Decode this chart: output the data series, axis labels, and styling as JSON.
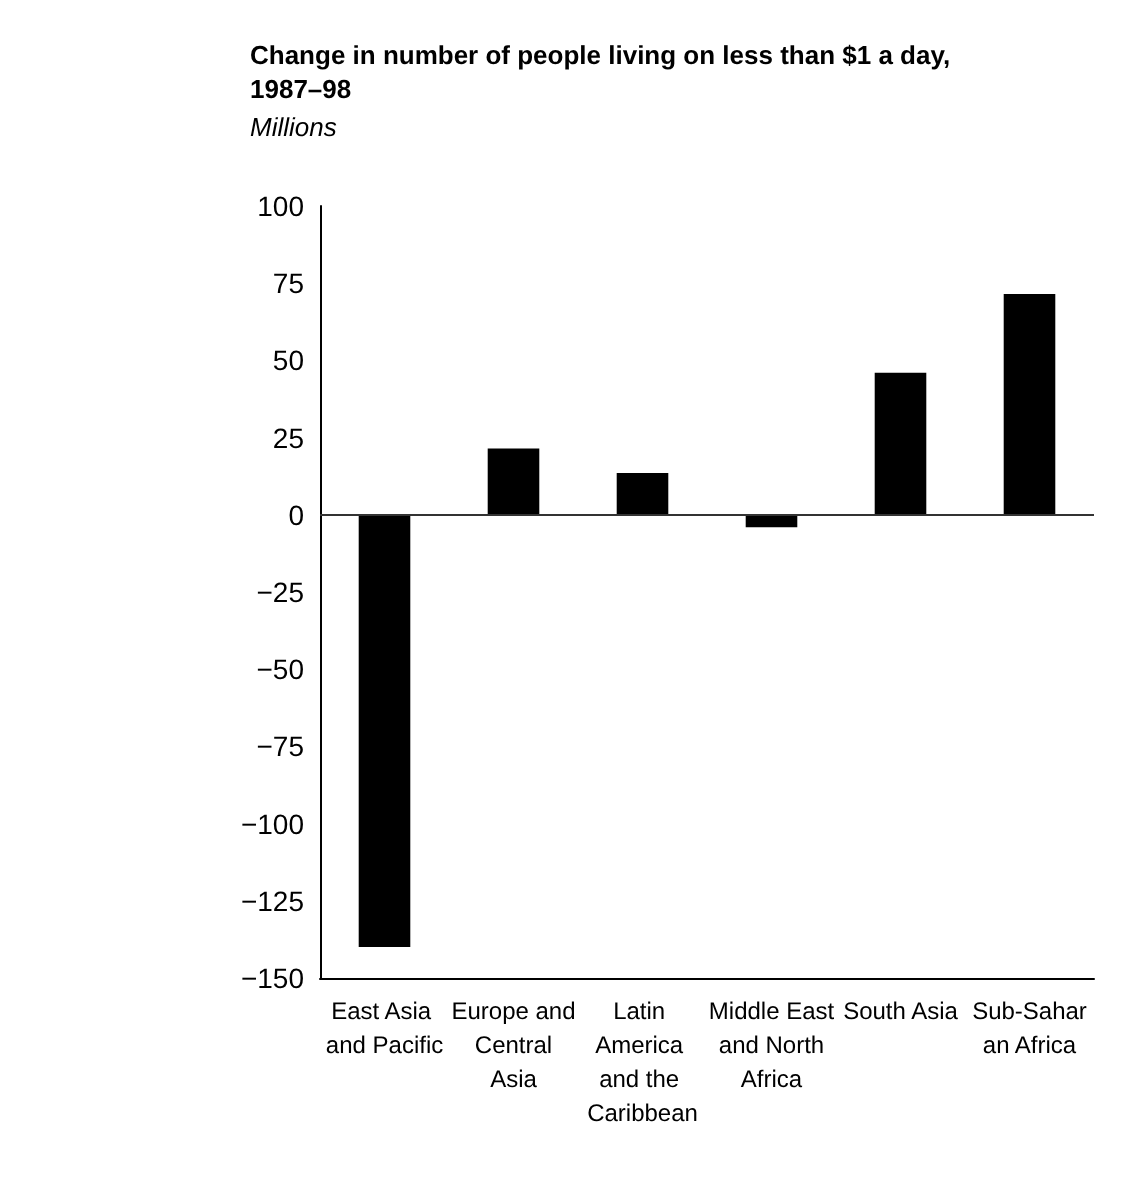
{
  "chart_data": {
    "type": "bar",
    "title": "Change in number of people living on less than $1 a day, 1987–98",
    "subtitle": "Millions",
    "categories": [
      "East Asia and Pacific",
      "Europe and Central Asia",
      "Latin America and the Caribbean",
      "Middle East and North Africa",
      "South Asia",
      "Sub-Saharan Africa"
    ],
    "values": [
      -140,
      21.5,
      13.5,
      -4,
      46,
      71.5
    ],
    "color": "#000000",
    "ylim": [
      -150,
      100
    ],
    "yticks": [
      -150,
      -125,
      -100,
      -75,
      -50,
      -25,
      0,
      25,
      50,
      75,
      100
    ],
    "ref_lines": [
      {
        "axis": "y",
        "value": 0
      }
    ],
    "grid": false
  }
}
